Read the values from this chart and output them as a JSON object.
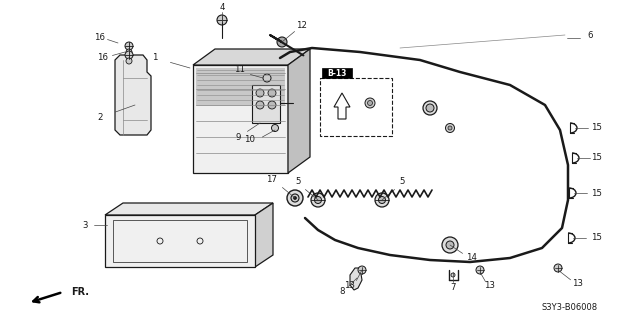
{
  "bg_color": "#ffffff",
  "diagram_code": "S3Y3-B06008",
  "part_label": "B-13",
  "fr_label": "FR.",
  "fig_width": 6.4,
  "fig_height": 3.19,
  "dpi": 100,
  "gray": "#1a1a1a",
  "light_gray": "#888888"
}
